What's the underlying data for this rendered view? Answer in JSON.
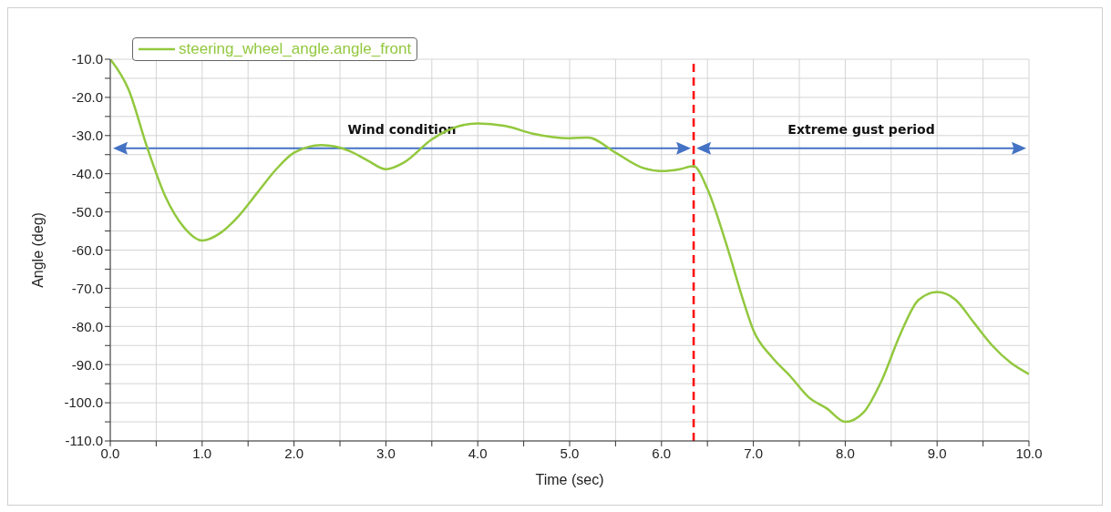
{
  "chart_data": {
    "type": "line",
    "xlabel": "Time (sec)",
    "ylabel": "Angle (deg)",
    "x": [
      0,
      0.2,
      0.4,
      0.6,
      0.8,
      1.0,
      1.2,
      1.4,
      1.6,
      1.8,
      2.0,
      2.3,
      2.6,
      2.8,
      3.0,
      3.2,
      3.5,
      3.8,
      4.0,
      4.3,
      4.6,
      5.0,
      5.2,
      5.5,
      5.8,
      6.0,
      6.2,
      6.35,
      6.5,
      6.7,
      6.9,
      7.0,
      7.2,
      7.4,
      7.6,
      7.8,
      8.0,
      8.2,
      8.4,
      8.6,
      8.8,
      9.0,
      9.2,
      9.4,
      9.6,
      9.8,
      10.0
    ],
    "series": [
      {
        "name": "steering_wheel_angle.angle_front",
        "color": "#92c83e",
        "values": [
          -10,
          -18,
          -33,
          -46,
          -54,
          -57.5,
          -55.5,
          -51,
          -45,
          -39,
          -34.5,
          -32.5,
          -34,
          -36.5,
          -38.8,
          -37,
          -31,
          -27.5,
          -26.8,
          -27.5,
          -29.5,
          -30.7,
          -30.5,
          -34.5,
          -38.5,
          -39.3,
          -38.8,
          -38,
          -44,
          -58,
          -74,
          -81,
          -88,
          -93,
          -98.5,
          -101.5,
          -105,
          -102.5,
          -94,
          -82,
          -73,
          -71,
          -73,
          -79,
          -85,
          -89.5,
          -92.5
        ]
      }
    ],
    "xlim": [
      0,
      10
    ],
    "xticks": [
      {
        "value": 0,
        "label": "0.0"
      },
      {
        "value": 0.5,
        "label": null
      },
      {
        "value": 1,
        "label": "1.0"
      },
      {
        "value": 1.5,
        "label": null
      },
      {
        "value": 2,
        "label": "2.0"
      },
      {
        "value": 2.5,
        "label": null
      },
      {
        "value": 3,
        "label": "3.0"
      },
      {
        "value": 3.5,
        "label": null
      },
      {
        "value": 4,
        "label": "4.0"
      },
      {
        "value": 4.5,
        "label": null
      },
      {
        "value": 5,
        "label": "5.0"
      },
      {
        "value": 5.5,
        "label": null
      },
      {
        "value": 6,
        "label": "6.0"
      },
      {
        "value": 6.5,
        "label": null
      },
      {
        "value": 7,
        "label": "7.0"
      },
      {
        "value": 7.5,
        "label": null
      },
      {
        "value": 8,
        "label": "8.0"
      },
      {
        "value": 8.5,
        "label": null
      },
      {
        "value": 9,
        "label": "9.0"
      },
      {
        "value": 9.5,
        "label": null
      },
      {
        "value": 10,
        "label": "10.0"
      }
    ],
    "ylim": [
      -110,
      -10
    ],
    "yticks": [
      {
        "value": -110,
        "label": "-110.0"
      },
      {
        "value": -105,
        "label": null
      },
      {
        "value": -100,
        "label": "-100.0"
      },
      {
        "value": -95,
        "label": null
      },
      {
        "value": -90,
        "label": "-90.0"
      },
      {
        "value": -85,
        "label": null
      },
      {
        "value": -80,
        "label": "-80.0"
      },
      {
        "value": -75,
        "label": null
      },
      {
        "value": -70,
        "label": "-70.0"
      },
      {
        "value": -65,
        "label": null
      },
      {
        "value": -60,
        "label": "-60.0"
      },
      {
        "value": -55,
        "label": null
      },
      {
        "value": -50,
        "label": "-50.0"
      },
      {
        "value": -45,
        "label": null
      },
      {
        "value": -40,
        "label": "-40.0"
      },
      {
        "value": -35,
        "label": null
      },
      {
        "value": -30,
        "label": "-30.0"
      },
      {
        "value": -25,
        "label": null
      },
      {
        "value": -20,
        "label": "-20.0"
      },
      {
        "value": -15,
        "label": null
      },
      {
        "value": -10,
        "label": "-10.0"
      }
    ],
    "ref_lines": [
      {
        "axis": "x",
        "value": 6.35,
        "color": "#ff0000",
        "line_style": "dashed"
      }
    ],
    "annotations": [
      "Wind condition",
      "Extreme gust period"
    ],
    "grid": true,
    "legend": "top left",
    "marker": "none",
    "line_style": "solid"
  }
}
